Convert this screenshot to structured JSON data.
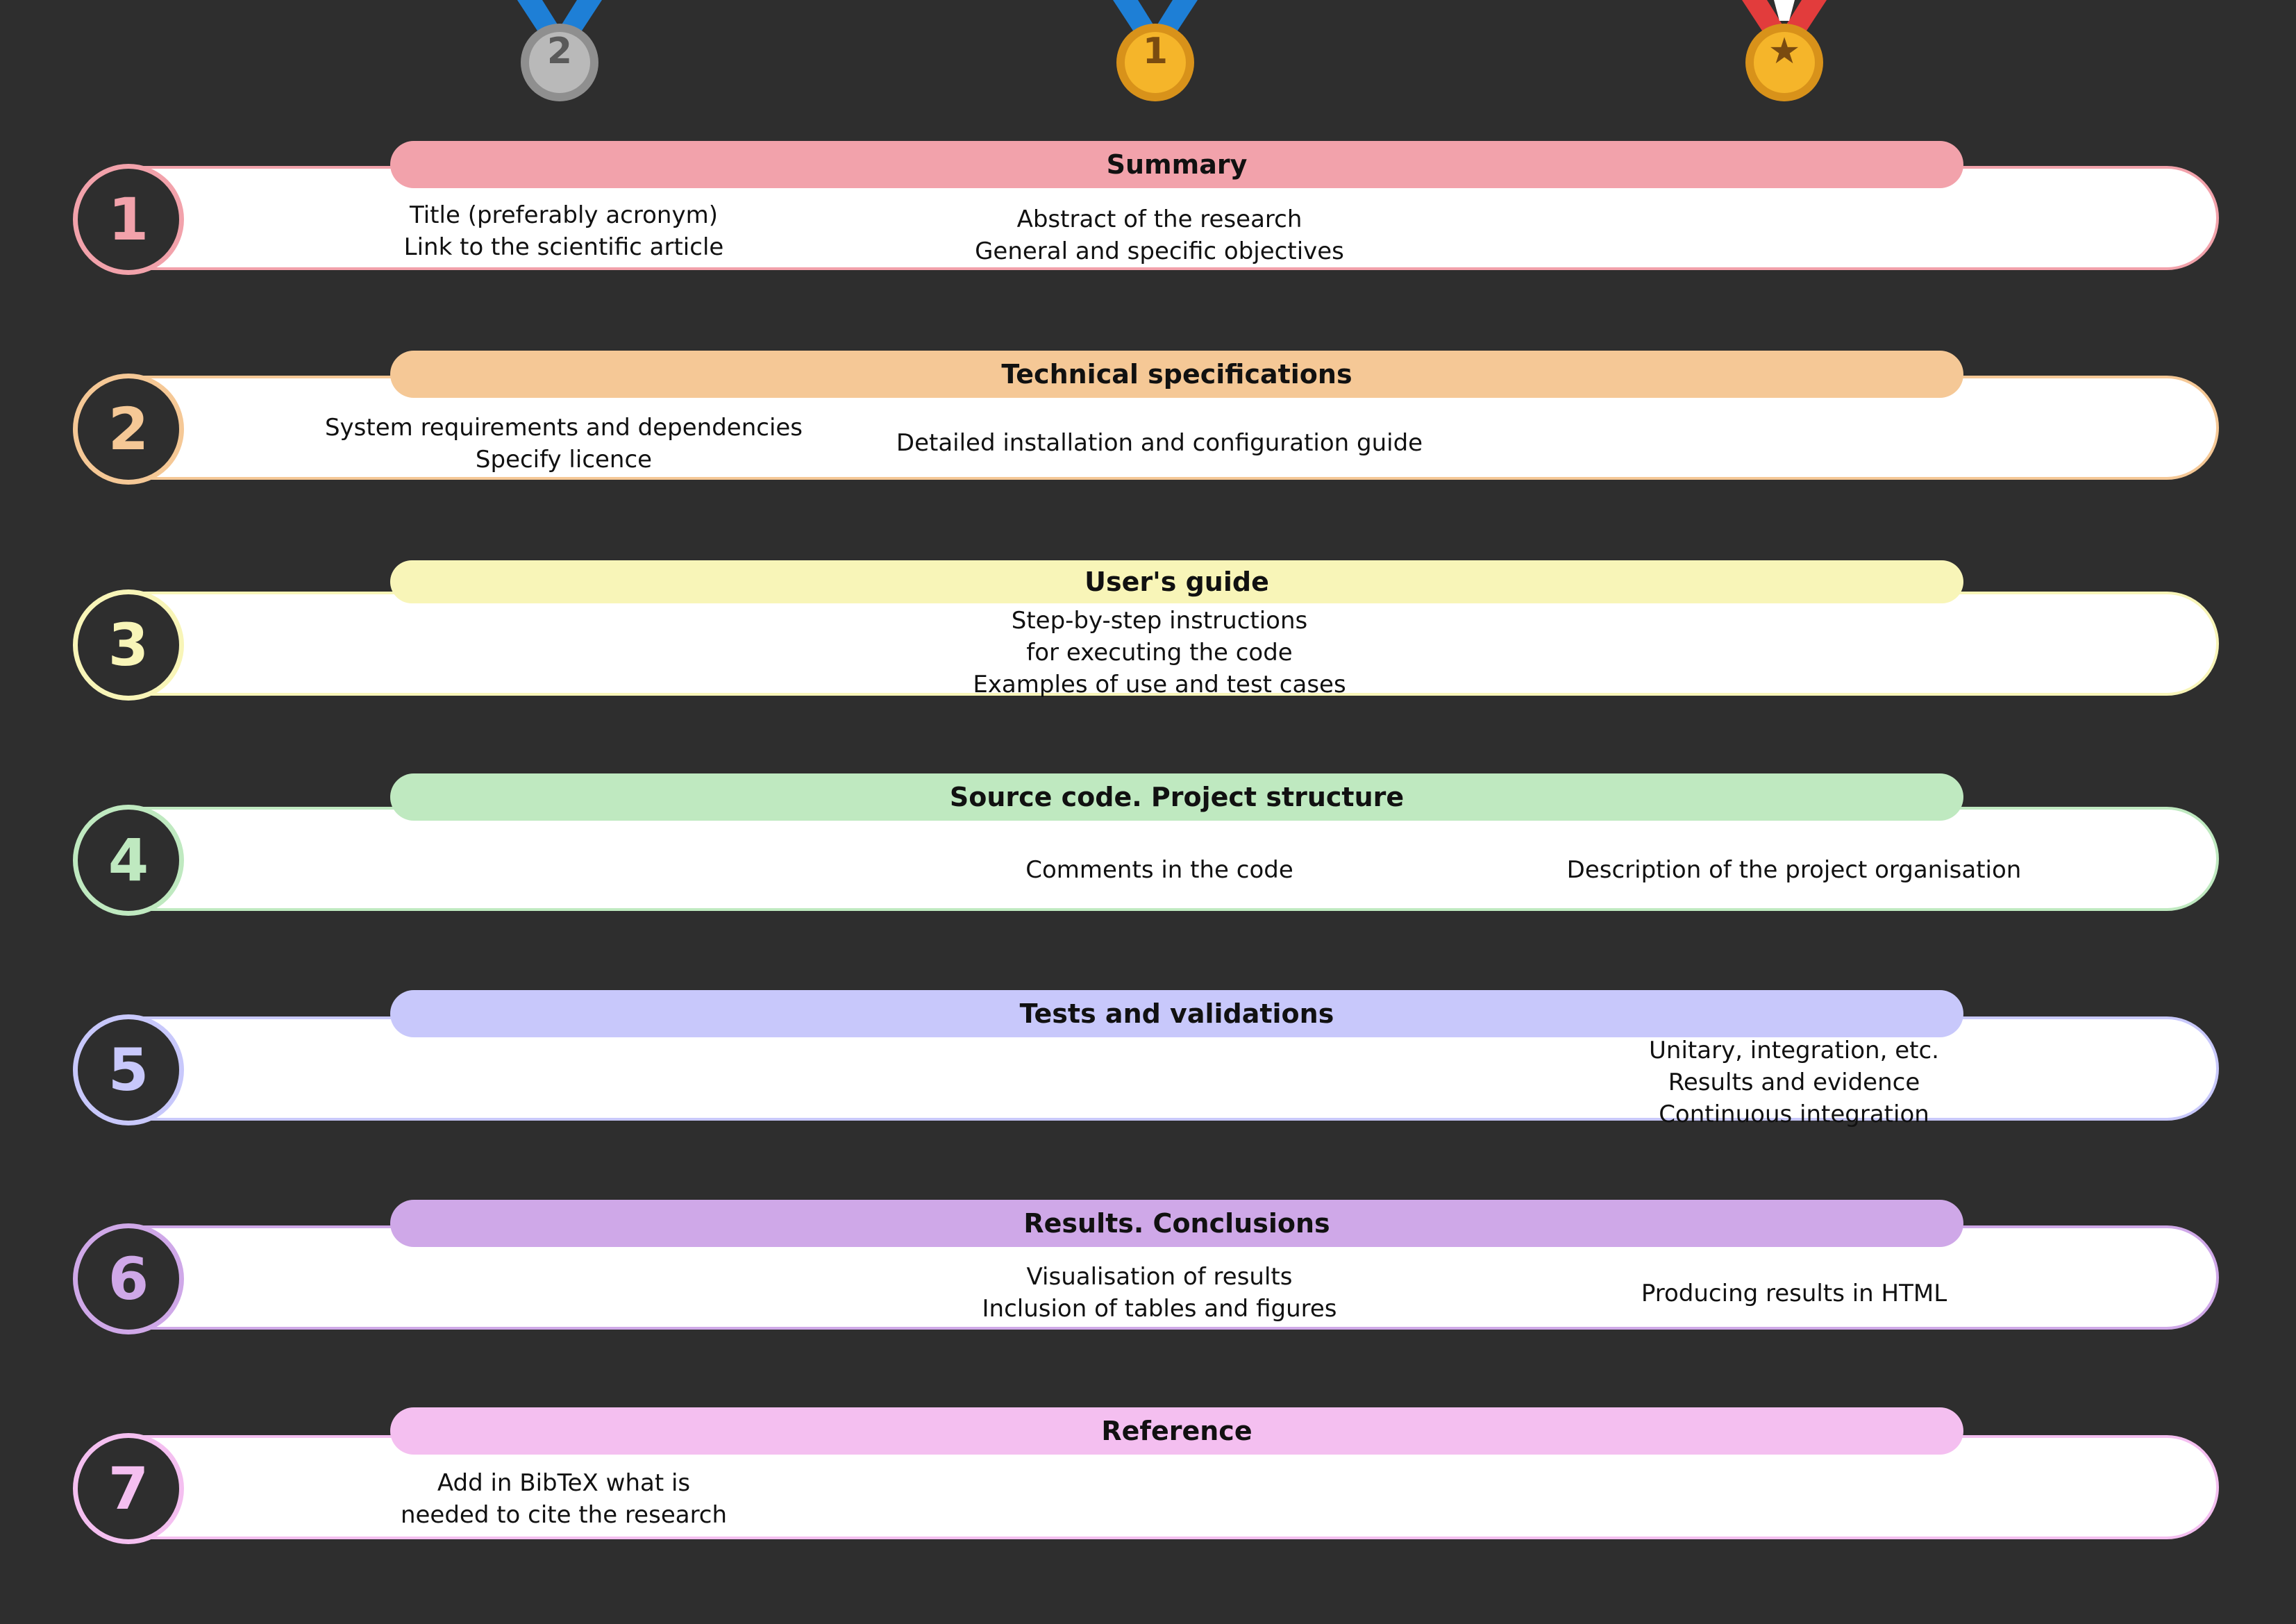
{
  "medals": [
    {
      "label": "2",
      "ribbon": "#1e7fd6",
      "body": "#b9b9b9",
      "ring": "#8f8f8f",
      "text": "#5a5a5a"
    },
    {
      "label": "1",
      "ribbon": "#1e7fd6",
      "body": "#f5b52a",
      "ring": "#d8921a",
      "text": "#7a4b10"
    },
    {
      "label": "★",
      "ribbon": "#e23c3c",
      "body": "#f5b52a",
      "ring": "#d8921a",
      "text": "#7a4b10"
    }
  ],
  "sections": [
    {
      "number": "1",
      "title": "Summary",
      "color": "#f2a2ab",
      "col1": [
        "Title (preferably acronym)",
        "Link to the scientific article"
      ],
      "col2": [
        "Abstract of the research",
        "General and specific objectives"
      ],
      "col3": []
    },
    {
      "number": "2",
      "title": "Technical specifications",
      "color": "#f5c896",
      "col1": [
        "System requirements  and dependencies",
        "Specify licence"
      ],
      "col2": [
        "Detailed installation and configuration guide"
      ],
      "col3": []
    },
    {
      "number": "3",
      "title": "User's guide",
      "color": "#f8f5b8",
      "col1": [],
      "col2": [
        "Step-by-step instructions",
        "for executing the code",
        "Examples of use and test cases"
      ],
      "col3": []
    },
    {
      "number": "4",
      "title": "Source code. Project structure",
      "color": "#bfe9c0",
      "col1": [],
      "col2": [
        "Comments in the code"
      ],
      "col3": [
        "Description of the project organisation"
      ]
    },
    {
      "number": "5",
      "title": "Tests and validations",
      "color": "#c8c8fb",
      "col1": [],
      "col2": [],
      "col3": [
        "Unitary, integration, etc.",
        "Results and evidence",
        "Continuous integration"
      ]
    },
    {
      "number": "6",
      "title": "Results. Conclusions",
      "color": "#cfa8e8",
      "col1": [],
      "col2": [
        "Visualisation of results",
        "Inclusion of tables and figures"
      ],
      "col3": [
        "Producing results in HTML"
      ]
    },
    {
      "number": "7",
      "title": "Reference",
      "color": "#f4bff0",
      "col1": [
        "Add in BibTeX what is",
        "needed to cite the research"
      ],
      "col2": [],
      "col3": []
    }
  ]
}
